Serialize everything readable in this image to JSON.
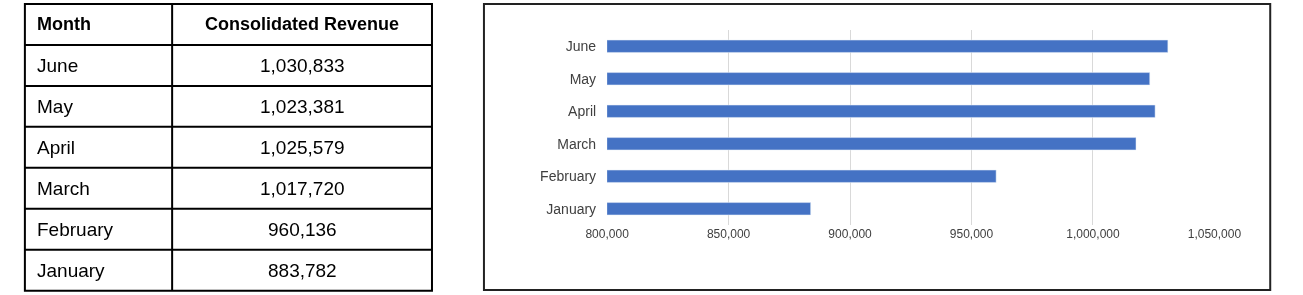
{
  "chart_data": [
    {
      "type": "other",
      "annotations": [
        "Month",
        "Consolidated Revenue",
        "June",
        "1,030,833",
        "May",
        "1,023,381",
        "April",
        "1,025,579",
        "March",
        "1,017,720",
        "February",
        "960,136",
        "January",
        "883,782"
      ]
    },
    {
      "type": "bar",
      "orientation": "horizontal",
      "categories": [
        "June",
        "May",
        "April",
        "March",
        "February",
        "January"
      ],
      "values": [
        1030833,
        1023381,
        1025579,
        1017720,
        960136,
        883782
      ],
      "color": "#4472c4",
      "xlim": [
        800000,
        1050000
      ],
      "xticks": [
        {
          "value": 800000,
          "label": "800,000"
        },
        {
          "value": 850000,
          "label": "850,000"
        },
        {
          "value": 900000,
          "label": "900,000"
        },
        {
          "value": 950000,
          "label": "950,000"
        },
        {
          "value": 1000000,
          "label": "1,000,000"
        },
        {
          "value": 1050000,
          "label": "1,050,000"
        }
      ],
      "grid": "x"
    }
  ]
}
